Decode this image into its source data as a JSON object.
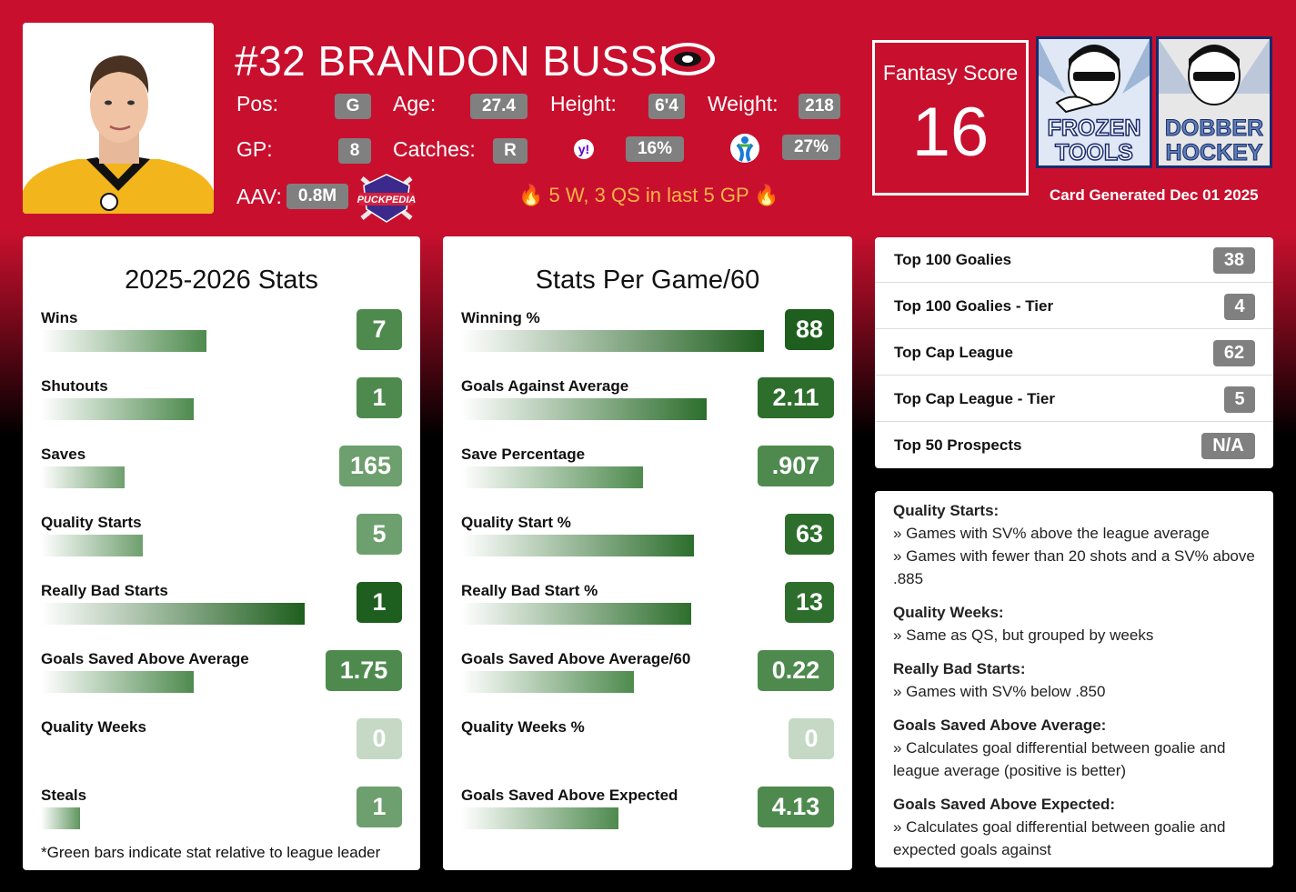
{
  "player": {
    "name": "#32 BRANDON BUSSI",
    "pos_label": "Pos:",
    "pos": "G",
    "age_label": "Age:",
    "age": "27.4",
    "height_label": "Height:",
    "height": "6'4",
    "weight_label": "Weight:",
    "weight": "218",
    "gp_label": "GP:",
    "gp": "8",
    "catches_label": "Catches:",
    "catches": "R",
    "yahoo_pct": "16%",
    "espn_pct": "27%",
    "aav_label": "AAV:",
    "aav": "0.8M",
    "hot_streak": "5 W, 3 QS in last 5 GP"
  },
  "fantasy": {
    "label": "Fantasy Score",
    "value": "16"
  },
  "logos": {
    "frozen": [
      "FROZEN",
      "TOOLS"
    ],
    "dobber": [
      "DOBBER",
      "HOCKEY"
    ],
    "puckpedia": "PUCKPEDIA"
  },
  "generated": "Card Generated Dec 01 2025",
  "colors": {
    "brand_red": "#c8102e",
    "dark_green": "#1e5e1e",
    "mid_green": "#4e8a4e",
    "light_green": "#8fb88f"
  },
  "season_stats": {
    "title": "2025-2026 Stats",
    "rows": [
      {
        "label": "Wins",
        "value": "7",
        "fraction": 0.55
      },
      {
        "label": "Shutouts",
        "value": "1",
        "fraction": 0.51
      },
      {
        "label": "Saves",
        "value": "165",
        "fraction": 0.28
      },
      {
        "label": "Quality Starts",
        "value": "5",
        "fraction": 0.34
      },
      {
        "label": "Really Bad Starts",
        "value": "1",
        "fraction": 0.88
      },
      {
        "label": "Goals Saved Above Average",
        "value": "1.75",
        "fraction": 0.51
      },
      {
        "label": "Quality Weeks",
        "value": "0",
        "fraction": 0
      },
      {
        "label": "Steals",
        "value": "1",
        "fraction": 0.13
      }
    ],
    "footnote": "*Green bars indicate stat relative to league leader"
  },
  "per_game": {
    "title": "Stats Per Game/60",
    "rows": [
      {
        "label": "Winning %",
        "value": "88",
        "fraction": 1.0
      },
      {
        "label": "Goals Against Average",
        "value": "2.11",
        "fraction": 0.81
      },
      {
        "label": "Save Percentage",
        "value": ".907",
        "fraction": 0.6
      },
      {
        "label": "Quality Start %",
        "value": "63",
        "fraction": 0.77
      },
      {
        "label": "Really Bad Start %",
        "value": "13",
        "fraction": 0.76
      },
      {
        "label": "Goals Saved Above Average/60",
        "value": "0.22",
        "fraction": 0.57
      },
      {
        "label": "Quality Weeks %",
        "value": "0",
        "fraction": 0
      },
      {
        "label": "Goals Saved Above Expected",
        "value": "4.13",
        "fraction": 0.52
      }
    ]
  },
  "rankings": [
    {
      "label": "Top 100 Goalies",
      "value": "38"
    },
    {
      "label": "Top 100 Goalies - Tier",
      "value": "4"
    },
    {
      "label": "Top Cap League",
      "value": "62"
    },
    {
      "label": "Top Cap League - Tier",
      "value": "5"
    },
    {
      "label": "Top 50 Prospects",
      "value": "N/A"
    }
  ],
  "definitions": [
    {
      "title": "Quality Starts:",
      "lines": [
        "» Games with SV% above the league average",
        "» Games with fewer than 20 shots and a SV% above .885"
      ]
    },
    {
      "title": "Quality Weeks:",
      "lines": [
        "» Same as QS, but grouped by weeks"
      ]
    },
    {
      "title": "Really Bad Starts:",
      "lines": [
        "» Games with SV% below .850"
      ]
    },
    {
      "title": "Goals Saved Above Average:",
      "lines": [
        "» Calculates goal differential between goalie and league average (positive is better)"
      ]
    },
    {
      "title": "Goals Saved Above Expected:",
      "lines": [
        "» Calculates goal differential between goalie and expected goals against"
      ]
    }
  ]
}
